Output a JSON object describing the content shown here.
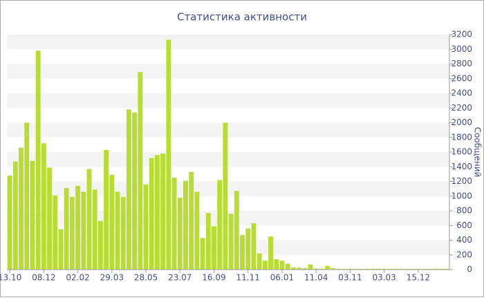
{
  "chart_data": {
    "type": "bar",
    "title": "Статистика активности",
    "y_label": "Сообщений",
    "categories": [
      "13.10",
      null,
      null,
      null,
      null,
      null,
      "08.12",
      null,
      null,
      null,
      null,
      null,
      "02.02",
      null,
      null,
      null,
      null,
      null,
      "29.03",
      null,
      null,
      null,
      null,
      null,
      "28.05",
      null,
      null,
      null,
      null,
      null,
      "23.07",
      null,
      null,
      null,
      null,
      null,
      "16.09",
      null,
      null,
      null,
      null,
      null,
      "11.11",
      null,
      null,
      null,
      null,
      null,
      "06.01",
      null,
      null,
      null,
      null,
      null,
      "11.04",
      null,
      null,
      null,
      null,
      null,
      "03.11",
      null,
      null,
      null,
      null,
      null,
      "03.03",
      null,
      null,
      null,
      null,
      null,
      "15.12",
      null,
      null,
      null,
      null,
      null
    ],
    "values": [
      1280,
      1470,
      1660,
      2000,
      1480,
      2980,
      1720,
      1390,
      1010,
      550,
      1110,
      990,
      1140,
      1060,
      1370,
      1090,
      660,
      1630,
      1290,
      1060,
      990,
      2180,
      2140,
      2690,
      1160,
      1520,
      1560,
      1580,
      3130,
      1250,
      980,
      1210,
      1330,
      1060,
      430,
      770,
      590,
      1220,
      2000,
      760,
      1070,
      470,
      560,
      630,
      220,
      120,
      450,
      140,
      120,
      80,
      30,
      25,
      20,
      70,
      15,
      10,
      50,
      20,
      10,
      10,
      10,
      10,
      10,
      10,
      10,
      10,
      10,
      10,
      10,
      10,
      10,
      10,
      10,
      10,
      10,
      10,
      10,
      10
    ],
    "color": "#b7dc32",
    "ylim": [
      0,
      3200
    ],
    "yticks": [
      0,
      200,
      400,
      600,
      800,
      1000,
      1200,
      1400,
      1600,
      1800,
      2000,
      2200,
      2400,
      2600,
      2800,
      3000,
      3200
    ],
    "grid": "stripes",
    "y_axis_side": "right"
  }
}
